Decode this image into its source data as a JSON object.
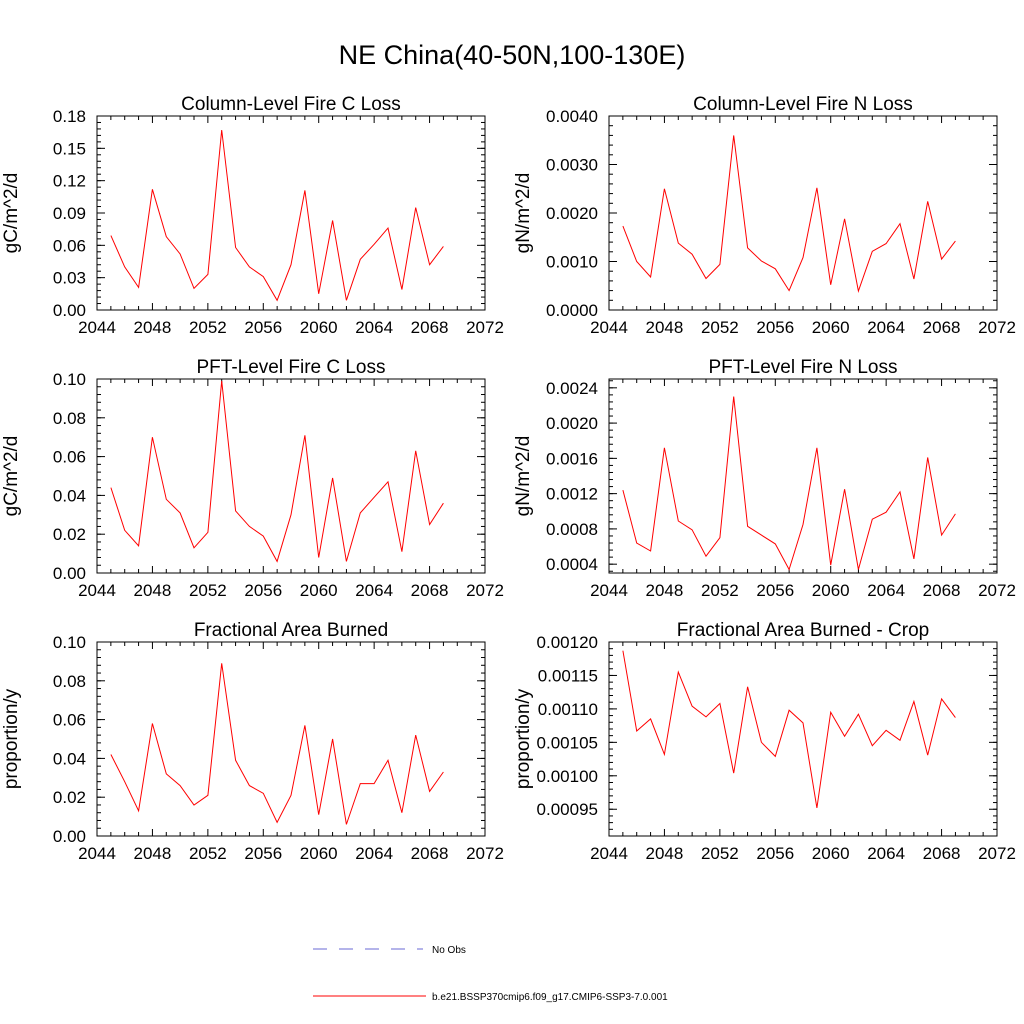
{
  "figure": {
    "title": "NE China(40-50N,100-130E)",
    "series_color": "#ff0000",
    "obs_color": "#6a6ad6"
  },
  "legend": {
    "obs_label": "No Obs",
    "model_label": "b.e21.BSSP370cmip6.f09_g17.CMIP6-SSP3-7.0.001"
  },
  "chart_data": [
    {
      "type": "line",
      "title": "Column-Level Fire C Loss",
      "xlabel": "",
      "ylabel": "gC/m^2/d",
      "xlim": [
        2044,
        2072
      ],
      "ylim": [
        0,
        0.18
      ],
      "xticks": [
        "2044",
        "2048",
        "2052",
        "2056",
        "2060",
        "2064",
        "2068",
        "2072"
      ],
      "yticks": [
        "0.00",
        "0.03",
        "0.06",
        "0.09",
        "0.12",
        "0.15",
        "0.18"
      ],
      "x": [
        2045,
        2046,
        2047,
        2048,
        2049,
        2050,
        2051,
        2052,
        2053,
        2054,
        2055,
        2056,
        2057,
        2058,
        2059,
        2060,
        2061,
        2062,
        2063,
        2064,
        2065,
        2066,
        2067,
        2068,
        2069
      ],
      "series": [
        {
          "values": [
            0.069,
            0.04,
            0.021,
            0.112,
            0.068,
            0.052,
            0.02,
            0.033,
            0.167,
            0.058,
            0.04,
            0.031,
            0.009,
            0.042,
            0.111,
            0.015,
            0.083,
            0.009,
            0.047,
            0.061,
            0.076,
            0.019,
            0.095,
            0.042,
            0.059
          ]
        }
      ]
    },
    {
      "type": "line",
      "title": "Column-Level Fire N Loss",
      "xlabel": "",
      "ylabel": "gN/m^2/d",
      "xlim": [
        2044,
        2072
      ],
      "ylim": [
        0,
        0.004
      ],
      "xticks": [
        "2044",
        "2048",
        "2052",
        "2056",
        "2060",
        "2064",
        "2068",
        "2072"
      ],
      "yticks": [
        "0.0000",
        "0.0010",
        "0.0020",
        "0.0030",
        "0.0040"
      ],
      "x": [
        2045,
        2046,
        2047,
        2048,
        2049,
        2050,
        2051,
        2052,
        2053,
        2054,
        2055,
        2056,
        2057,
        2058,
        2059,
        2060,
        2061,
        2062,
        2063,
        2064,
        2065,
        2066,
        2067,
        2068,
        2069
      ],
      "series": [
        {
          "values": [
            0.00173,
            0.001,
            0.00068,
            0.0025,
            0.00138,
            0.00115,
            0.00065,
            0.00094,
            0.0036,
            0.00128,
            0.00101,
            0.00085,
            0.0004,
            0.00108,
            0.00252,
            0.00052,
            0.00188,
            0.00039,
            0.00121,
            0.00137,
            0.00178,
            0.00064,
            0.00224,
            0.00105,
            0.00142
          ]
        }
      ]
    },
    {
      "type": "line",
      "title": "PFT-Level Fire C Loss",
      "xlabel": "",
      "ylabel": "gC/m^2/d",
      "xlim": [
        2044,
        2072
      ],
      "ylim": [
        0,
        0.1
      ],
      "xticks": [
        "2044",
        "2048",
        "2052",
        "2056",
        "2060",
        "2064",
        "2068",
        "2072"
      ],
      "yticks": [
        "0.00",
        "0.02",
        "0.04",
        "0.06",
        "0.08",
        "0.10"
      ],
      "x": [
        2045,
        2046,
        2047,
        2048,
        2049,
        2050,
        2051,
        2052,
        2053,
        2054,
        2055,
        2056,
        2057,
        2058,
        2059,
        2060,
        2061,
        2062,
        2063,
        2064,
        2065,
        2066,
        2067,
        2068,
        2069
      ],
      "series": [
        {
          "values": [
            0.044,
            0.022,
            0.014,
            0.07,
            0.038,
            0.031,
            0.013,
            0.021,
            0.099,
            0.032,
            0.024,
            0.019,
            0.006,
            0.03,
            0.071,
            0.008,
            0.049,
            0.006,
            0.031,
            0.039,
            0.047,
            0.011,
            0.063,
            0.025,
            0.036
          ]
        }
      ]
    },
    {
      "type": "line",
      "title": "PFT-Level Fire N Loss",
      "xlabel": "",
      "ylabel": "gN/m^2/d",
      "xlim": [
        2044,
        2072
      ],
      "ylim": [
        0.0003,
        0.0025
      ],
      "xticks": [
        "2044",
        "2048",
        "2052",
        "2056",
        "2060",
        "2064",
        "2068",
        "2072"
      ],
      "yticks": [
        "0.0004",
        "0.0008",
        "0.0012",
        "0.0016",
        "0.0020",
        "0.0024"
      ],
      "ytick_values": [
        0.0004,
        0.0008,
        0.0012,
        0.0016,
        0.002,
        0.0024
      ],
      "x": [
        2045,
        2046,
        2047,
        2048,
        2049,
        2050,
        2051,
        2052,
        2053,
        2054,
        2055,
        2056,
        2057,
        2058,
        2059,
        2060,
        2061,
        2062,
        2063,
        2064,
        2065,
        2066,
        2067,
        2068,
        2069
      ],
      "series": [
        {
          "values": [
            0.00124,
            0.00064,
            0.00055,
            0.00172,
            0.00089,
            0.00079,
            0.00049,
            0.0007,
            0.0023,
            0.00083,
            0.00073,
            0.00063,
            0.00034,
            0.00085,
            0.00172,
            0.00039,
            0.00125,
            0.00034,
            0.00091,
            0.00099,
            0.00122,
            0.00046,
            0.00161,
            0.00073,
            0.00097
          ]
        }
      ]
    },
    {
      "type": "line",
      "title": "Fractional Area Burned",
      "xlabel": "",
      "ylabel": "proportion/y",
      "xlim": [
        2044,
        2072
      ],
      "ylim": [
        0,
        0.1
      ],
      "xticks": [
        "2044",
        "2048",
        "2052",
        "2056",
        "2060",
        "2064",
        "2068",
        "2072"
      ],
      "yticks": [
        "0.00",
        "0.02",
        "0.04",
        "0.06",
        "0.08",
        "0.10"
      ],
      "x": [
        2045,
        2046,
        2047,
        2048,
        2049,
        2050,
        2051,
        2052,
        2053,
        2054,
        2055,
        2056,
        2057,
        2058,
        2059,
        2060,
        2061,
        2062,
        2063,
        2064,
        2065,
        2066,
        2067,
        2068,
        2069
      ],
      "series": [
        {
          "values": [
            0.042,
            0.028,
            0.013,
            0.058,
            0.032,
            0.026,
            0.016,
            0.021,
            0.089,
            0.039,
            0.026,
            0.022,
            0.007,
            0.021,
            0.057,
            0.011,
            0.05,
            0.006,
            0.027,
            0.027,
            0.039,
            0.012,
            0.052,
            0.023,
            0.033
          ]
        }
      ]
    },
    {
      "type": "line",
      "title": "Fractional Area Burned - Crop",
      "xlabel": "",
      "ylabel": "proportion/y",
      "xlim": [
        2044,
        2072
      ],
      "ylim": [
        0.00091,
        0.0012
      ],
      "xticks": [
        "2044",
        "2048",
        "2052",
        "2056",
        "2060",
        "2064",
        "2068",
        "2072"
      ],
      "yticks": [
        "0.00095",
        "0.00100",
        "0.00105",
        "0.00110",
        "0.00115",
        "0.00120"
      ],
      "ytick_values": [
        0.00095,
        0.001,
        0.00105,
        0.0011,
        0.00115,
        0.0012
      ],
      "x": [
        2045,
        2046,
        2047,
        2048,
        2049,
        2050,
        2051,
        2052,
        2053,
        2054,
        2055,
        2056,
        2057,
        2058,
        2059,
        2060,
        2061,
        2062,
        2063,
        2064,
        2065,
        2066,
        2067,
        2068,
        2069
      ],
      "series": [
        {
          "values": [
            0.001187,
            0.001067,
            0.001085,
            0.001032,
            0.001155,
            0.001104,
            0.001088,
            0.001108,
            0.001004,
            0.001133,
            0.00105,
            0.001029,
            0.001098,
            0.001079,
            0.000952,
            0.001095,
            0.001059,
            0.001092,
            0.001045,
            0.001068,
            0.001053,
            0.001111,
            0.001031,
            0.001115,
            0.001087
          ]
        }
      ]
    }
  ]
}
